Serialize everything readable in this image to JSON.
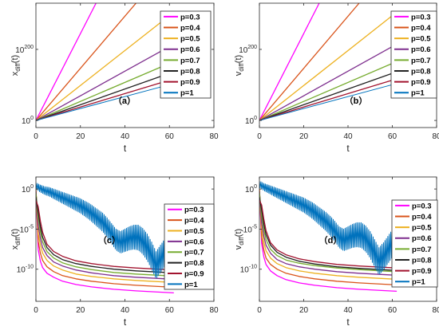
{
  "chart_data": [
    {
      "type": "line",
      "panel_label": "（a）",
      "xlabel": "t",
      "ylabel_main": "x",
      "ylabel_sub": "diff",
      "ylabel_tail": "(t)",
      "xlim": [
        0,
        80
      ],
      "xticks": [
        "0",
        "20",
        "40",
        "60",
        "80"
      ],
      "yscale": "log",
      "ylim_exp": [
        -20,
        330
      ],
      "yticks": [
        {
          "base": "10",
          "exp": "0",
          "pow": 0
        },
        {
          "base": "10",
          "exp": "200",
          "pow": 200
        }
      ],
      "legend_position": "top-right",
      "series": [
        {
          "name": "p=0.3",
          "color": "#ff00ff",
          "x": [
            0,
            27
          ],
          "log10_y": [
            0,
            330
          ]
        },
        {
          "name": "p=0.4",
          "color": "#d95319",
          "x": [
            0,
            45
          ],
          "log10_y": [
            0,
            330
          ]
        },
        {
          "name": "p=0.5",
          "color": "#edb120",
          "x": [
            0,
            61
          ],
          "log10_y": [
            0,
            300
          ]
        },
        {
          "name": "p=0.6",
          "color": "#7e2f8e",
          "x": [
            0,
            62
          ],
          "log10_y": [
            0,
            215
          ]
        },
        {
          "name": "p=0.7",
          "color": "#77ac30",
          "x": [
            0,
            62
          ],
          "log10_y": [
            0,
            166
          ]
        },
        {
          "name": "p=0.8",
          "color": "#222222",
          "x": [
            0,
            62
          ],
          "log10_y": [
            0,
            137
          ]
        },
        {
          "name": "p=0.9",
          "color": "#a2142f",
          "x": [
            0,
            62
          ],
          "log10_y": [
            0,
            117
          ]
        },
        {
          "name": "p=1",
          "color": "#0072bd",
          "x": [
            0,
            62
          ],
          "log10_y": [
            0,
            104
          ]
        }
      ]
    },
    {
      "type": "line",
      "panel_label": "（b）",
      "xlabel": "t",
      "ylabel_main": "v",
      "ylabel_sub": "diff",
      "ylabel_tail": "(t)",
      "xlim": [
        0,
        80
      ],
      "xticks": [
        "0",
        "20",
        "40",
        "60",
        "80"
      ],
      "yscale": "log",
      "ylim_exp": [
        -20,
        330
      ],
      "yticks": [
        {
          "base": "10",
          "exp": "0",
          "pow": 0
        },
        {
          "base": "10",
          "exp": "200",
          "pow": 200
        }
      ],
      "legend_position": "top-right",
      "series": [
        {
          "name": "p=0.3",
          "color": "#ff00ff",
          "x": [
            0,
            27
          ],
          "log10_y": [
            0,
            330
          ]
        },
        {
          "name": "p=0.4",
          "color": "#d95319",
          "x": [
            0,
            45
          ],
          "log10_y": [
            0,
            330
          ]
        },
        {
          "name": "p=0.5",
          "color": "#edb120",
          "x": [
            0,
            61
          ],
          "log10_y": [
            0,
            300
          ]
        },
        {
          "name": "p=0.6",
          "color": "#7e2f8e",
          "x": [
            0,
            62
          ],
          "log10_y": [
            0,
            215
          ]
        },
        {
          "name": "p=0.7",
          "color": "#77ac30",
          "x": [
            0,
            62
          ],
          "log10_y": [
            0,
            166
          ]
        },
        {
          "name": "p=0.8",
          "color": "#222222",
          "x": [
            0,
            62
          ],
          "log10_y": [
            0,
            137
          ]
        },
        {
          "name": "p=0.9",
          "color": "#a2142f",
          "x": [
            0,
            62
          ],
          "log10_y": [
            0,
            117
          ]
        },
        {
          "name": "p=1",
          "color": "#0072bd",
          "x": [
            0,
            62
          ],
          "log10_y": [
            0,
            104
          ]
        }
      ]
    },
    {
      "type": "line",
      "panel_label": "（c）",
      "xlabel": "t",
      "ylabel_main": "x",
      "ylabel_sub": "diff",
      "ylabel_tail": "(t)",
      "xlim": [
        0,
        80
      ],
      "xticks": [
        "0",
        "20",
        "40",
        "60",
        "80"
      ],
      "yscale": "log",
      "ylim_exp": [
        -14,
        1.5
      ],
      "yticks": [
        {
          "base": "10",
          "exp": "0",
          "pow": 0
        },
        {
          "base": "10",
          "exp": "-5",
          "pow": -5
        },
        {
          "base": "10",
          "exp": "-10",
          "pow": -10
        }
      ],
      "legend_position": "right",
      "series": [
        {
          "name": "p=0.3",
          "color": "#ff00ff",
          "x": [
            0,
            1,
            2,
            3,
            5,
            8,
            12,
            18,
            25,
            35,
            45,
            55,
            62
          ],
          "log10_y": [
            0,
            -7.5,
            -9,
            -9.8,
            -10.5,
            -11,
            -11.5,
            -11.9,
            -12.2,
            -12.5,
            -12.7,
            -12.85,
            -12.95
          ]
        },
        {
          "name": "p=0.4",
          "color": "#d95319",
          "x": [
            0,
            1,
            2,
            3,
            5,
            8,
            12,
            18,
            25,
            35,
            45,
            55,
            62
          ],
          "log10_y": [
            0,
            -6.5,
            -8,
            -8.9,
            -9.7,
            -10.3,
            -10.8,
            -11.2,
            -11.5,
            -11.8,
            -12,
            -12.15,
            -12.25
          ]
        },
        {
          "name": "p=0.5",
          "color": "#edb120",
          "x": [
            0,
            1,
            2,
            3,
            5,
            8,
            12,
            18,
            25,
            35,
            45,
            55,
            62
          ],
          "log10_y": [
            0,
            -5.5,
            -7,
            -8,
            -8.9,
            -9.6,
            -10.1,
            -10.6,
            -10.9,
            -11.2,
            -11.4,
            -11.55,
            -11.65
          ]
        },
        {
          "name": "p=0.6",
          "color": "#7e2f8e",
          "x": [
            0,
            1,
            2,
            3,
            5,
            8,
            12,
            18,
            25,
            35,
            45,
            55,
            62
          ],
          "log10_y": [
            -0.3,
            -4.5,
            -6.2,
            -7.3,
            -8.3,
            -9.1,
            -9.6,
            -10.1,
            -10.45,
            -10.8,
            -11,
            -11.15,
            -11.25
          ]
        },
        {
          "name": "p=0.7",
          "color": "#77ac30",
          "x": [
            0,
            1,
            2,
            3,
            5,
            8,
            12,
            18,
            25,
            35,
            45,
            55,
            62
          ],
          "log10_y": [
            -0.5,
            -3.5,
            -5.4,
            -6.6,
            -7.8,
            -8.6,
            -9.2,
            -9.7,
            -10.05,
            -10.4,
            -10.6,
            -10.75,
            -10.85
          ]
        },
        {
          "name": "p=0.8",
          "color": "#222222",
          "x": [
            0,
            1,
            2,
            3,
            5,
            8,
            12,
            18,
            25,
            35,
            45,
            55,
            62
          ],
          "log10_y": [
            -1,
            -2.8,
            -4.7,
            -6,
            -7.3,
            -8.2,
            -8.8,
            -9.3,
            -9.65,
            -10,
            -10.2,
            -10.35,
            -10.45
          ]
        },
        {
          "name": "p=0.9",
          "color": "#a2142f",
          "x": [
            0,
            1,
            2,
            3,
            5,
            8,
            12,
            18,
            25,
            35,
            45,
            55,
            62
          ],
          "log10_y": [
            -1.4,
            -2.2,
            -4,
            -5.4,
            -6.9,
            -7.8,
            -8.4,
            -8.95,
            -9.3,
            -9.65,
            -9.85,
            -10,
            -10.1
          ]
        },
        {
          "name": "p=1",
          "color": "#0072bd",
          "x": [
            0,
            2,
            4,
            6,
            8,
            10,
            12,
            14,
            16,
            18,
            20,
            22,
            24,
            26,
            28,
            30,
            32,
            34,
            36,
            38,
            40,
            42,
            44,
            46,
            48,
            50,
            52,
            54,
            56,
            58,
            60,
            62
          ],
          "log10_y": [
            0.6,
            0.3,
            0.1,
            0,
            -0.2,
            -0.4,
            -0.6,
            -0.8,
            -1,
            -1.2,
            -1.4,
            -1.7,
            -2,
            -2.4,
            -2.8,
            -3.2,
            -3.8,
            -4.5,
            -5.2,
            -5.5,
            -5.2,
            -4.9,
            -4.7,
            -4.7,
            -5.1,
            -5.8,
            -6.8,
            -8,
            -7.2,
            -6.4,
            -5.6,
            -4.8
          ]
        }
      ]
    },
    {
      "type": "line",
      "panel_label": "（d）",
      "xlabel": "t",
      "ylabel_main": "v",
      "ylabel_sub": "diff",
      "ylabel_tail": "(t)",
      "xlim": [
        0,
        80
      ],
      "xticks": [
        "0",
        "20",
        "40",
        "60",
        "80"
      ],
      "yscale": "log",
      "ylim_exp": [
        -14,
        1.5
      ],
      "yticks": [
        {
          "base": "10",
          "exp": "0",
          "pow": 0
        },
        {
          "base": "10",
          "exp": "-5",
          "pow": -5
        },
        {
          "base": "10",
          "exp": "-10",
          "pow": -10
        }
      ],
      "legend_position": "right",
      "series": [
        {
          "name": "p=0.3",
          "color": "#ff00ff",
          "x": [
            0,
            1,
            2,
            3,
            5,
            8,
            12,
            18,
            25,
            35,
            45,
            55,
            62
          ],
          "log10_y": [
            0,
            -6.8,
            -8.5,
            -9.4,
            -10.2,
            -10.8,
            -11.3,
            -11.7,
            -12,
            -12.3,
            -12.5,
            -12.65,
            -12.75
          ]
        },
        {
          "name": "p=0.4",
          "color": "#d95319",
          "x": [
            0,
            1,
            2,
            3,
            5,
            8,
            12,
            18,
            25,
            35,
            45,
            55,
            62
          ],
          "log10_y": [
            0,
            -6,
            -7.6,
            -8.6,
            -9.4,
            -10,
            -10.5,
            -10.9,
            -11.2,
            -11.5,
            -11.7,
            -11.85,
            -11.95
          ]
        },
        {
          "name": "p=0.5",
          "color": "#edb120",
          "x": [
            0,
            1,
            2,
            3,
            5,
            8,
            12,
            18,
            25,
            35,
            45,
            55,
            62
          ],
          "log10_y": [
            0,
            -5,
            -6.6,
            -7.7,
            -8.6,
            -9.3,
            -9.8,
            -10.2,
            -10.5,
            -10.8,
            -11,
            -11.15,
            -11.25
          ]
        },
        {
          "name": "p=0.6",
          "color": "#7e2f8e",
          "x": [
            0,
            1,
            2,
            3,
            5,
            8,
            12,
            18,
            25,
            35,
            45,
            55,
            62
          ],
          "log10_y": [
            -0.3,
            -4.2,
            -5.9,
            -7,
            -8,
            -8.8,
            -9.3,
            -9.7,
            -10,
            -10.3,
            -10.5,
            -10.65,
            -10.75
          ]
        },
        {
          "name": "p=0.7",
          "color": "#77ac30",
          "x": [
            0,
            1,
            2,
            3,
            5,
            8,
            12,
            18,
            25,
            35,
            45,
            55,
            62
          ],
          "log10_y": [
            -0.5,
            -3.3,
            -5.1,
            -6.3,
            -7.5,
            -8.3,
            -8.85,
            -9.25,
            -9.55,
            -9.85,
            -10.05,
            -10.2,
            -10.3
          ]
        },
        {
          "name": "p=0.8",
          "color": "#222222",
          "x": [
            0,
            1,
            2,
            3,
            5,
            8,
            12,
            18,
            25,
            35,
            45,
            55,
            62
          ],
          "log10_y": [
            -1,
            -2.6,
            -4.4,
            -5.7,
            -7,
            -7.9,
            -8.5,
            -9,
            -9.35,
            -9.7,
            -9.9,
            -10.05,
            -10.15
          ]
        },
        {
          "name": "p=0.9",
          "color": "#a2142f",
          "x": [
            0,
            1,
            2,
            3,
            5,
            8,
            12,
            18,
            25,
            35,
            45,
            55,
            62
          ],
          "log10_y": [
            -1.4,
            -2,
            -3.8,
            -5.2,
            -6.7,
            -7.6,
            -8.2,
            -8.7,
            -9.05,
            -9.4,
            -9.6,
            -9.75,
            -9.85
          ]
        },
        {
          "name": "p=1",
          "color": "#0072bd",
          "x": [
            0,
            2,
            4,
            6,
            8,
            10,
            12,
            14,
            16,
            18,
            20,
            22,
            24,
            26,
            28,
            30,
            32,
            34,
            36,
            38,
            40,
            42,
            44,
            46,
            48,
            50,
            52,
            54,
            56,
            58,
            60,
            62
          ],
          "log10_y": [
            0.8,
            0.5,
            0.3,
            0.1,
            -0.1,
            -0.3,
            -0.5,
            -0.7,
            -0.9,
            -1.1,
            -1.3,
            -1.6,
            -1.9,
            -2.3,
            -2.7,
            -3.1,
            -3.6,
            -4.2,
            -4.9,
            -5.2,
            -4.9,
            -4.6,
            -4.4,
            -4.4,
            -4.8,
            -5.5,
            -6.5,
            -7.5,
            -6.9,
            -6.1,
            -5.3,
            -4.5
          ]
        }
      ]
    }
  ]
}
